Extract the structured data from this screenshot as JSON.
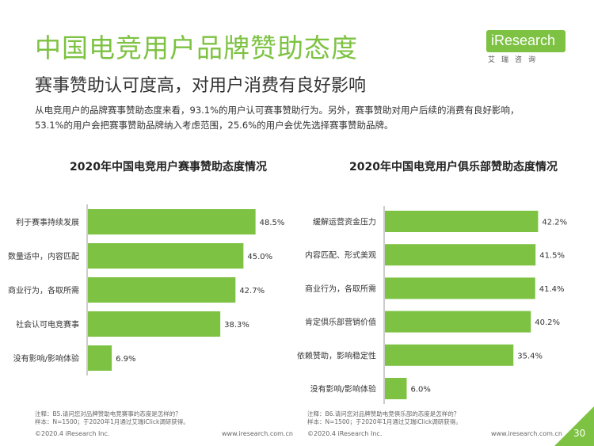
{
  "header": {
    "title": "中国电竞用户品牌赞助态度",
    "subtitle": "赛事赞助认可度高，对用户消费有良好影响",
    "description_lines": [
      "从电竞用户的品牌赛事赞助态度来看，93.1%的用户认可赛事赞助行为。另外，赛事赞助对用户后续的消费有良好影响，",
      "53.1%的用户会把赛事赞助品牌纳入考虑范围，25.6%的用户会优先选择赛事赞助品牌。"
    ]
  },
  "logo": {
    "text": "iResearch",
    "sub": "艾瑞咨询"
  },
  "colors": {
    "bar": "#7dc242",
    "accent": "#7dc242"
  },
  "chart_data": [
    {
      "type": "bar",
      "orientation": "horizontal",
      "title": "2020年中国电竞用户赛事赞助态度情况",
      "categories": [
        "利于赛事持续发展",
        "数量适中，内容匹配",
        "商业行为，各取所需",
        "社会认可电竞赛事",
        "没有影响/影响体验"
      ],
      "values": [
        48.5,
        45.0,
        42.7,
        38.3,
        6.9
      ],
      "value_labels": [
        "48.5%",
        "45.0%",
        "42.7%",
        "38.3%",
        "6.9%"
      ],
      "unit": "%",
      "xlim": [
        0,
        55
      ],
      "grid": false
    },
    {
      "type": "bar",
      "orientation": "horizontal",
      "title": "2020年中国电竞用户俱乐部赞助态度情况",
      "categories": [
        "缓解运营资金压力",
        "内容匹配、形式美观",
        "商业行为，各取所需",
        "肯定俱乐部营销价值",
        "依赖赞助，影响稳定性",
        "没有影响/影响体验"
      ],
      "values": [
        42.2,
        41.5,
        41.4,
        40.2,
        35.4,
        6.0
      ],
      "value_labels": [
        "42.2%",
        "41.5%",
        "41.4%",
        "40.2%",
        "35.4%",
        "6.0%"
      ],
      "unit": "%",
      "xlim": [
        0,
        48
      ],
      "grid": false
    }
  ],
  "notes": [
    {
      "line1": "注释：B5.请问您对品牌赞助电竞赛事的态度是怎样的？",
      "line2": "样本：N=1500；于2020年1月通过艾瑞iClick调研获得。"
    },
    {
      "line1": "注释：B6.请问您对品牌赞助电竞俱乐部的态度是怎样的？",
      "line2": "样本：N=1500；于2020年1月通过艾瑞iClick调研获得。"
    }
  ],
  "footer": {
    "left_copyright": "©2020.4 iResearch Inc.",
    "left_url": "www.iresearch.com.cn",
    "right_copyright": "©2020.4 iResearch Inc.",
    "right_url": "www.iresearch.com.cn",
    "page_number": "30"
  }
}
